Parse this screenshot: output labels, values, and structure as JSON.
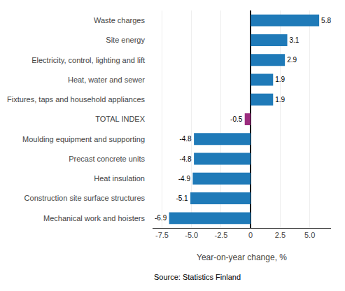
{
  "chart_data": {
    "type": "bar",
    "orientation": "horizontal",
    "categories": [
      "Mechanical work and hoisters",
      "Construction site surface structures",
      "Heat insulation",
      "Precast concrete units",
      "Moulding equipment and supporting",
      "TOTAL INDEX",
      "Fixtures, taps and household appliances",
      "Heat, water and sewer",
      "Electricity, control, lighting and lift",
      "Site energy",
      "Waste charges"
    ],
    "values": [
      -6.9,
      -5.1,
      -4.9,
      -4.8,
      -4.8,
      -0.5,
      1.9,
      1.9,
      2.9,
      3.1,
      5.8
    ],
    "colors": [
      "#1f7ab8",
      "#1f7ab8",
      "#1f7ab8",
      "#1f7ab8",
      "#1f7ab8",
      "#9b2c7e",
      "#1f7ab8",
      "#1f7ab8",
      "#1f7ab8",
      "#1f7ab8",
      "#1f7ab8"
    ],
    "xlabel": "Year-on-year change, %",
    "xlim": [
      -8.3,
      6.8
    ],
    "xticks": [
      -7.5,
      {
        "value": -5.0,
        "label": "-5.0"
      },
      -2.5,
      0,
      2.5,
      {
        "value": 5.0,
        "label": "5.0"
      }
    ],
    "grid": true,
    "data_labels": true,
    "annotations": [
      "Source: Statistics Finland"
    ]
  }
}
